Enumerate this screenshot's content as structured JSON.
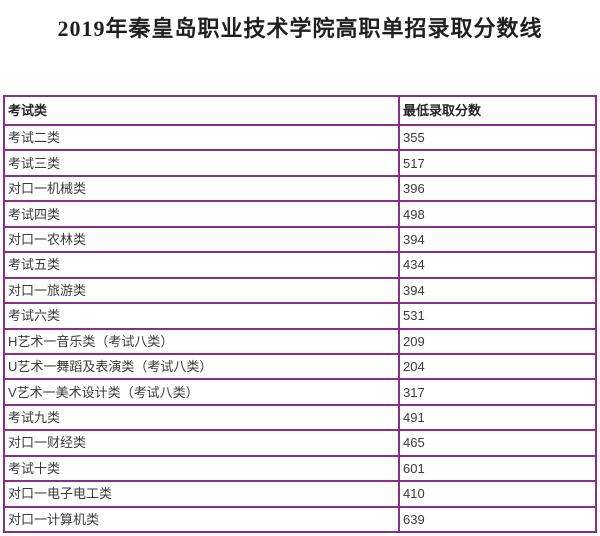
{
  "title": "2019年秦皇岛职业技术学院高职单招录取分数线",
  "colors": {
    "table_border": "#8b2d8b",
    "title_text": "#1f1f1f",
    "header_text": "#262626",
    "cell_text": "#3a3a3a",
    "page_background": "#ffffff"
  },
  "table": {
    "headers": {
      "category": "考试类",
      "score": "最低录取分数"
    },
    "rows": [
      {
        "category": "考试二类",
        "score": "355"
      },
      {
        "category": "考试三类",
        "score": "517"
      },
      {
        "category": "对口一机械类",
        "score": "396"
      },
      {
        "category": "考试四类",
        "score": "498"
      },
      {
        "category": "对口一农林类",
        "score": "394"
      },
      {
        "category": "考试五类",
        "score": "434"
      },
      {
        "category": "对口一旅游类",
        "score": "394"
      },
      {
        "category": "考试六类",
        "score": "531"
      },
      {
        "category": "H艺术一音乐类（考试八类）",
        "score": "209"
      },
      {
        "category": "U艺术一舞蹈及表演类（考试八类）",
        "score": "204"
      },
      {
        "category": "V艺术一美术设计类（考试八类）",
        "score": "317"
      },
      {
        "category": "考试九类",
        "score": "491"
      },
      {
        "category": "对口一财经类",
        "score": "465"
      },
      {
        "category": "考试十类",
        "score": "601"
      },
      {
        "category": "对口一电子电工类",
        "score": "410"
      },
      {
        "category": "对口一计算机类",
        "score": "639"
      }
    ]
  }
}
